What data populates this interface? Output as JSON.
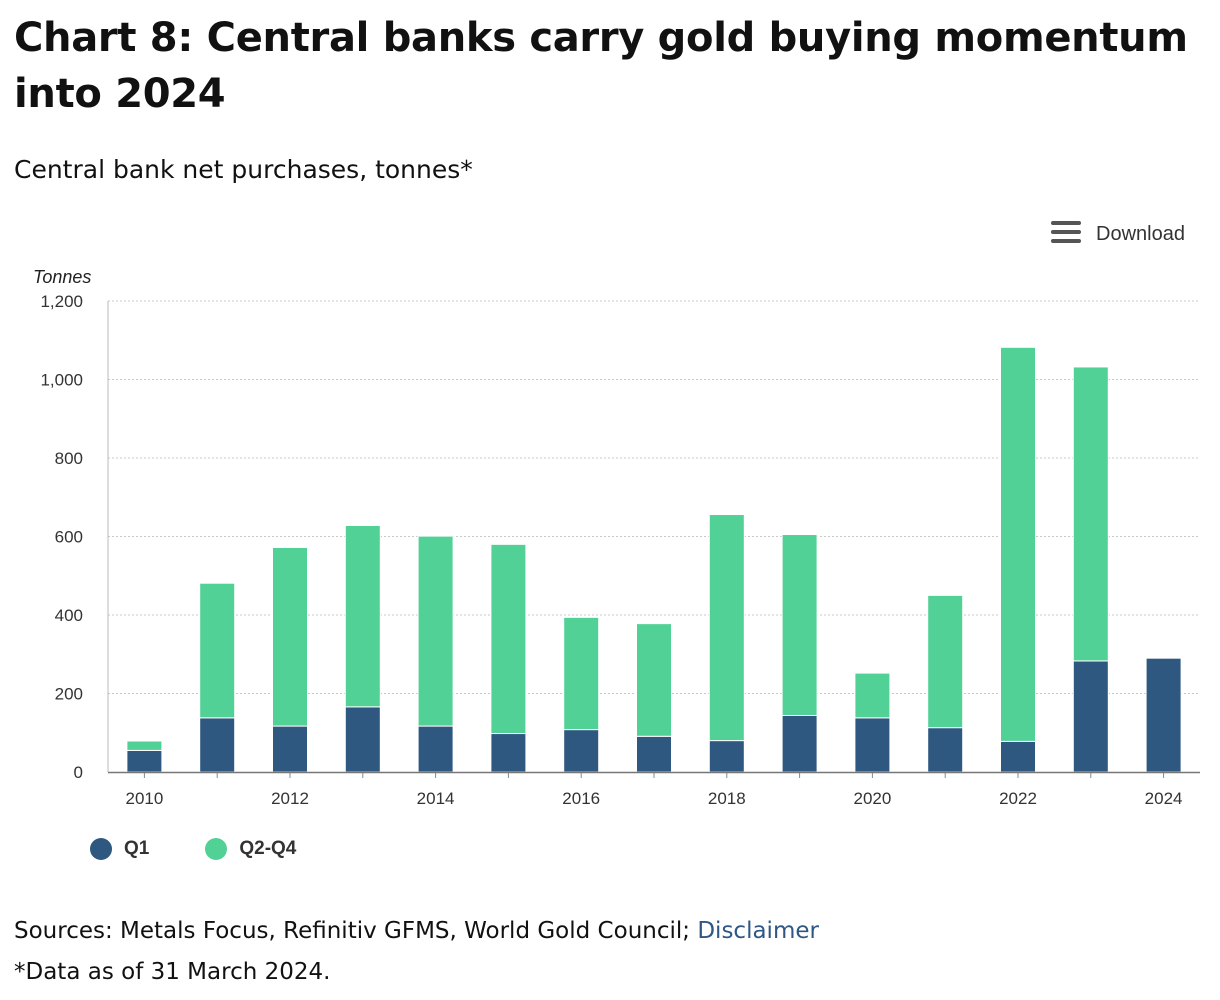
{
  "header": {
    "title": "Chart 8: Central banks carry gold buying momentum into 2024",
    "subtitle": "Central bank net purchases, tonnes*"
  },
  "toolbar": {
    "download_label": "Download",
    "menu_icon": "hamburger-menu-icon"
  },
  "colors": {
    "q1": "#2e5880",
    "q2q4": "#52d196",
    "grid": "#c8c8c8",
    "axis": "#888888"
  },
  "chart_data": {
    "type": "bar",
    "stacked": true,
    "title": "Chart 8: Central banks carry gold buying momentum into 2024",
    "subtitle": "Central bank net purchases, tonnes*",
    "ylabel": "Tonnes",
    "xlabel": "",
    "ylim": [
      0,
      1200
    ],
    "yticks": [
      0,
      200,
      400,
      600,
      800,
      1000,
      1200
    ],
    "ytick_labels": [
      "0",
      "200",
      "400",
      "600",
      "800",
      "1,000",
      "1,200"
    ],
    "categories": [
      "2010",
      "2011",
      "2012",
      "2013",
      "2014",
      "2015",
      "2016",
      "2017",
      "2018",
      "2019",
      "2020",
      "2021",
      "2022",
      "2023",
      "2024"
    ],
    "xtick_labels": [
      "2010",
      "",
      "2012",
      "",
      "2014",
      "",
      "2016",
      "",
      "2018",
      "",
      "2020",
      "",
      "2022",
      "",
      "2024"
    ],
    "grid": true,
    "legend_position": "bottom-left",
    "series": [
      {
        "name": "Q1",
        "color": "#2e5880",
        "values": [
          55,
          138,
          117,
          166,
          117,
          98,
          108,
          91,
          80,
          144,
          138,
          113,
          78,
          283,
          290
        ]
      },
      {
        "name": "Q2-Q4",
        "color": "#52d196",
        "values": [
          24,
          343,
          455,
          462,
          484,
          482,
          286,
          287,
          576,
          461,
          114,
          337,
          1004,
          749,
          0
        ]
      }
    ]
  },
  "footer": {
    "sources_label": "Sources: Metals Focus, Refinitiv GFMS, World Gold Council; ",
    "disclaimer_link": "Disclaimer",
    "note": "*Data as of 31 March 2024."
  }
}
